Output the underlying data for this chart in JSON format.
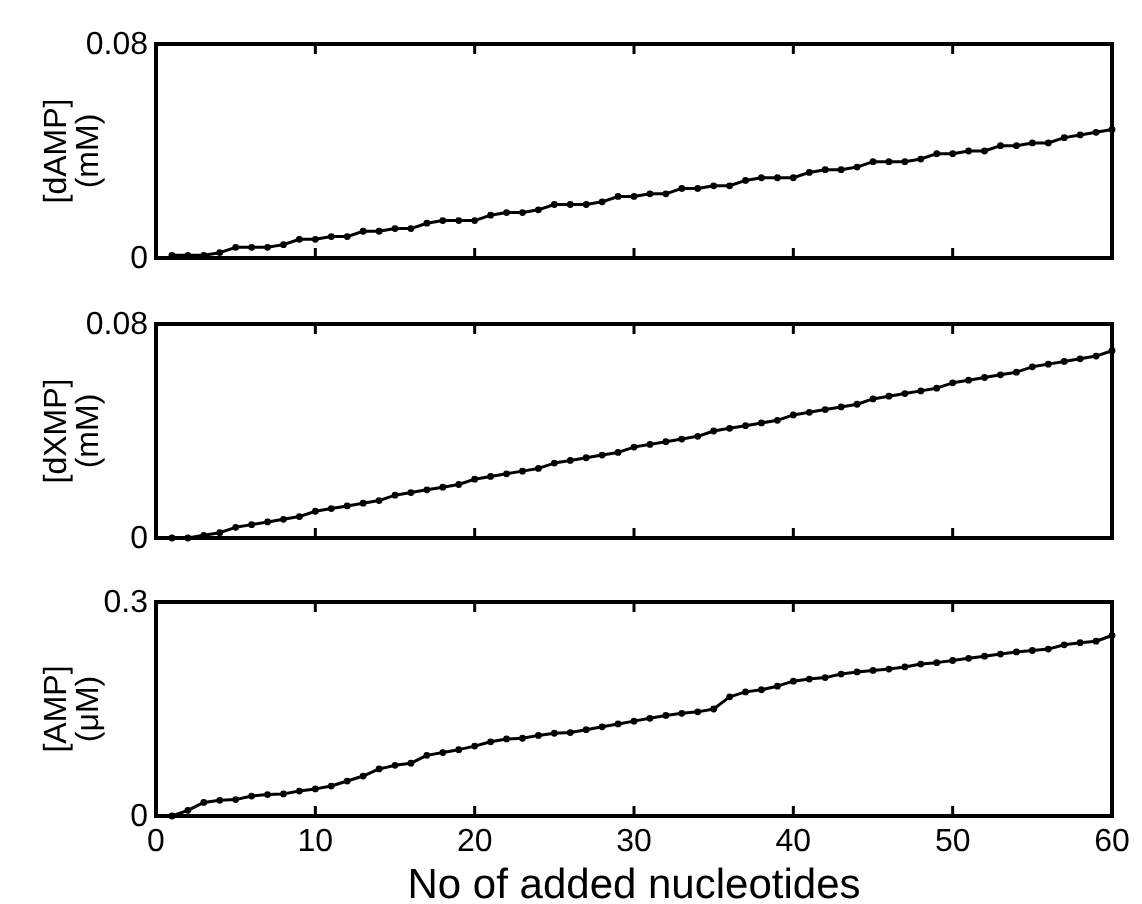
{
  "chart_data": [
    {
      "type": "line",
      "ylabel": "[dAMP]\n(mM)",
      "xlim": [
        0,
        60
      ],
      "xticks": [
        0,
        10,
        20,
        30,
        40,
        50,
        60
      ],
      "ylim": [
        0,
        0.08
      ],
      "yticks": [
        0,
        0.08
      ],
      "tick_labels": "y",
      "marker": "circle",
      "line_style": "solid",
      "grid": false,
      "x": [
        1,
        2,
        3,
        4,
        5,
        6,
        7,
        8,
        9,
        10,
        11,
        12,
        13,
        14,
        15,
        16,
        17,
        18,
        19,
        20,
        21,
        22,
        23,
        24,
        25,
        26,
        27,
        28,
        29,
        30,
        31,
        32,
        33,
        34,
        35,
        36,
        37,
        38,
        39,
        40,
        41,
        42,
        43,
        44,
        45,
        46,
        47,
        48,
        49,
        50,
        51,
        52,
        53,
        54,
        55,
        56,
        57,
        58,
        59,
        60
      ],
      "series": [
        {
          "color": "#000000",
          "values": [
            0.001,
            0.001,
            0.001,
            0.002,
            0.004,
            0.004,
            0.004,
            0.005,
            0.007,
            0.007,
            0.008,
            0.008,
            0.01,
            0.01,
            0.011,
            0.011,
            0.013,
            0.014,
            0.014,
            0.014,
            0.016,
            0.017,
            0.017,
            0.018,
            0.02,
            0.02,
            0.02,
            0.021,
            0.023,
            0.023,
            0.024,
            0.024,
            0.026,
            0.026,
            0.027,
            0.027,
            0.029,
            0.03,
            0.03,
            0.03,
            0.032,
            0.033,
            0.033,
            0.034,
            0.036,
            0.036,
            0.036,
            0.037,
            0.039,
            0.039,
            0.04,
            0.04,
            0.042,
            0.042,
            0.043,
            0.043,
            0.045,
            0.046,
            0.047,
            0.048
          ]
        }
      ]
    },
    {
      "type": "line",
      "ylabel": "[dXMP]\n(mM)",
      "xlim": [
        0,
        60
      ],
      "xticks": [
        0,
        10,
        20,
        30,
        40,
        50,
        60
      ],
      "ylim": [
        0,
        0.08
      ],
      "yticks": [
        0,
        0.08
      ],
      "tick_labels": "y",
      "marker": "circle",
      "line_style": "solid",
      "grid": false,
      "x": [
        1,
        2,
        3,
        4,
        5,
        6,
        7,
        8,
        9,
        10,
        11,
        12,
        13,
        14,
        15,
        16,
        17,
        18,
        19,
        20,
        21,
        22,
        23,
        24,
        25,
        26,
        27,
        28,
        29,
        30,
        31,
        32,
        33,
        34,
        35,
        36,
        37,
        38,
        39,
        40,
        41,
        42,
        43,
        44,
        45,
        46,
        47,
        48,
        49,
        50,
        51,
        52,
        53,
        54,
        55,
        56,
        57,
        58,
        59,
        60
      ],
      "series": [
        {
          "color": "#000000",
          "values": [
            0.0,
            0.0,
            0.001,
            0.002,
            0.004,
            0.005,
            0.006,
            0.007,
            0.008,
            0.01,
            0.011,
            0.012,
            0.013,
            0.014,
            0.016,
            0.017,
            0.018,
            0.019,
            0.02,
            0.022,
            0.023,
            0.024,
            0.025,
            0.026,
            0.028,
            0.029,
            0.03,
            0.031,
            0.032,
            0.034,
            0.035,
            0.036,
            0.037,
            0.038,
            0.04,
            0.041,
            0.042,
            0.043,
            0.044,
            0.046,
            0.047,
            0.048,
            0.049,
            0.05,
            0.052,
            0.053,
            0.054,
            0.055,
            0.056,
            0.058,
            0.059,
            0.06,
            0.061,
            0.062,
            0.064,
            0.065,
            0.066,
            0.067,
            0.068,
            0.07
          ]
        }
      ]
    },
    {
      "type": "line",
      "xlabel": "No of added nucleotides",
      "ylabel": "[AMP]\n(μM)",
      "xlim": [
        0,
        60
      ],
      "xticks": [
        0,
        10,
        20,
        30,
        40,
        50,
        60
      ],
      "ylim": [
        0,
        0.3
      ],
      "yticks": [
        0,
        0.3
      ],
      "marker": "circle",
      "line_style": "solid",
      "grid": false,
      "x": [
        1,
        2,
        3,
        4,
        5,
        6,
        7,
        8,
        9,
        10,
        11,
        12,
        13,
        14,
        15,
        16,
        17,
        18,
        19,
        20,
        21,
        22,
        23,
        24,
        25,
        26,
        27,
        28,
        29,
        30,
        31,
        32,
        33,
        34,
        35,
        36,
        37,
        38,
        39,
        40,
        41,
        42,
        43,
        44,
        45,
        46,
        47,
        48,
        49,
        50,
        51,
        52,
        53,
        54,
        55,
        56,
        57,
        58,
        59,
        60
      ],
      "series": [
        {
          "color": "#000000",
          "values": [
            0.0,
            0.008,
            0.019,
            0.022,
            0.023,
            0.028,
            0.03,
            0.031,
            0.035,
            0.038,
            0.042,
            0.049,
            0.056,
            0.066,
            0.071,
            0.074,
            0.085,
            0.089,
            0.093,
            0.098,
            0.104,
            0.108,
            0.109,
            0.113,
            0.116,
            0.117,
            0.121,
            0.125,
            0.129,
            0.133,
            0.137,
            0.141,
            0.144,
            0.146,
            0.15,
            0.167,
            0.174,
            0.177,
            0.182,
            0.189,
            0.192,
            0.194,
            0.199,
            0.202,
            0.204,
            0.206,
            0.209,
            0.213,
            0.215,
            0.218,
            0.221,
            0.224,
            0.227,
            0.23,
            0.232,
            0.234,
            0.24,
            0.243,
            0.245,
            0.253
          ]
        }
      ]
    }
  ]
}
